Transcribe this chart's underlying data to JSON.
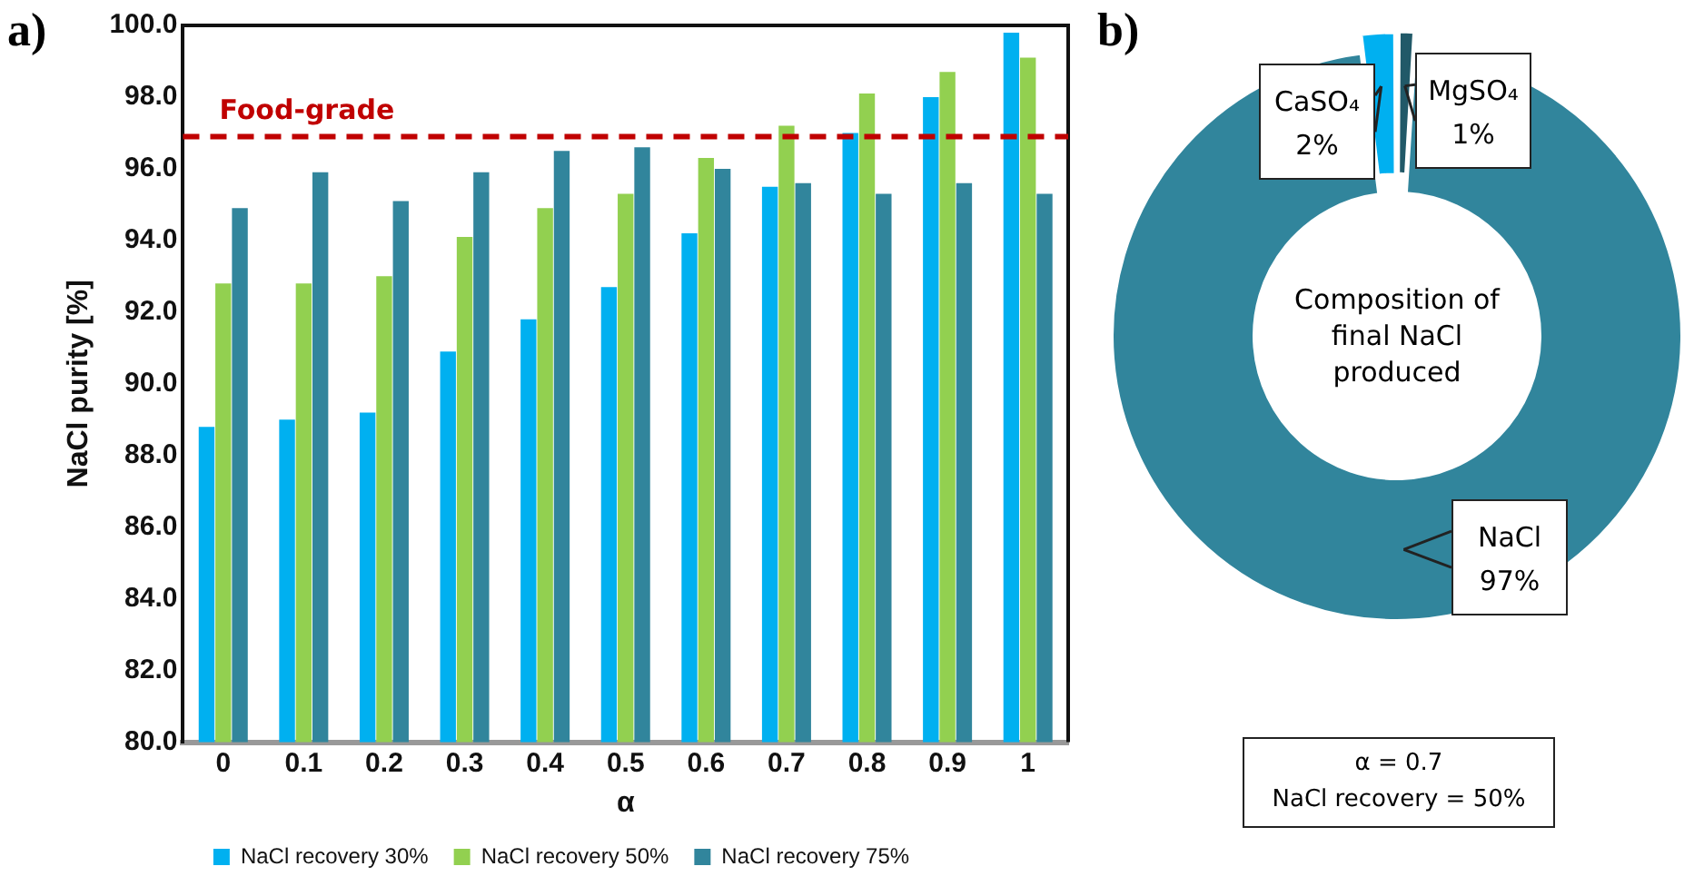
{
  "chart_data": [
    {
      "type": "bar",
      "title": "a)",
      "xlabel": "α",
      "ylabel": "NaCl purity [%]",
      "categories": [
        "0",
        "0.1",
        "0.2",
        "0.3",
        "0.4",
        "0.5",
        "0.6",
        "0.7",
        "0.8",
        "0.9",
        "1"
      ],
      "series": [
        {
          "name": "NaCl recovery 30%",
          "color": "#00b0f0",
          "values": [
            88.8,
            89.0,
            89.2,
            90.9,
            91.8,
            92.7,
            94.2,
            95.5,
            97.0,
            98.0,
            99.8
          ]
        },
        {
          "name": "NaCl recovery 50%",
          "color": "#92d050",
          "values": [
            92.8,
            92.8,
            93.0,
            94.1,
            94.9,
            95.3,
            96.3,
            97.2,
            98.1,
            98.7,
            99.1
          ]
        },
        {
          "name": "NaCl recovery 75%",
          "color": "#31859c",
          "values": [
            94.9,
            95.9,
            95.1,
            95.9,
            96.5,
            96.6,
            96.0,
            95.6,
            95.3,
            95.6,
            95.3
          ]
        }
      ],
      "ylim": [
        80,
        100
      ],
      "yticks": [
        {
          "value": 80,
          "label": "80.0"
        },
        {
          "value": 82,
          "label": "82.0"
        },
        {
          "value": 84,
          "label": "84.0"
        },
        {
          "value": 86,
          "label": "86.0"
        },
        {
          "value": 88,
          "label": "88.0"
        },
        {
          "value": 90,
          "label": "90.0"
        },
        {
          "value": 92,
          "label": "92.0"
        },
        {
          "value": 94,
          "label": "94.0"
        },
        {
          "value": 96,
          "label": "96.0"
        },
        {
          "value": 98,
          "label": "98.0"
        },
        {
          "value": 100,
          "label": "100.0"
        }
      ],
      "ref_lines": [
        {
          "axis": "y",
          "value": 96.9,
          "label": "Food-grade",
          "color": "#c00000",
          "line_style": "dashed"
        }
      ],
      "grid": false,
      "legend": "bottom"
    },
    {
      "type": "donut",
      "title": "b)",
      "categories": [
        "CaSO₄",
        "MgSO₄",
        "NaCl"
      ],
      "values": [
        2,
        1,
        97
      ],
      "value_labels": [
        "2%",
        "1%",
        "97%"
      ],
      "colors": [
        "#00b0f0",
        "#215968",
        "#31859c"
      ],
      "annotations": [
        "Composition of final NaCl produced",
        "α = 0.7",
        "NaCl recovery = 50%"
      ],
      "legend": false
    }
  ]
}
